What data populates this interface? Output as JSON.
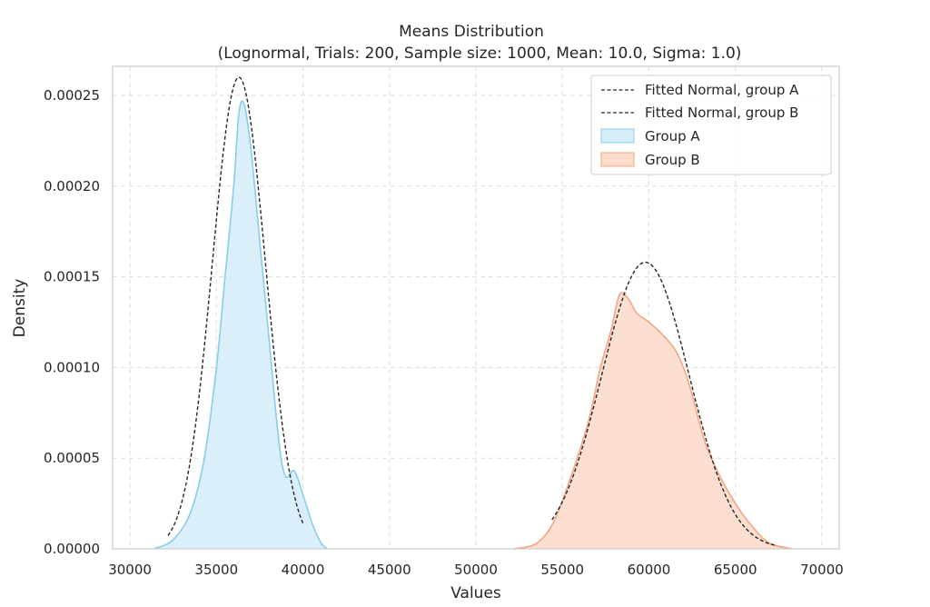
{
  "chart_data": {
    "type": "area",
    "title": "Means Distribution",
    "subtitle": "(Lognormal, Trials: 200, Sample size: 1000, Mean: 10.0, Sigma: 1.0)",
    "xlabel": "Values",
    "ylabel": "Density",
    "xlim": [
      29000,
      71000
    ],
    "ylim": [
      0,
      0.000266
    ],
    "xticks": [
      30000,
      35000,
      40000,
      45000,
      50000,
      55000,
      60000,
      65000,
      70000
    ],
    "yticks": [
      0.0,
      5e-05,
      0.0001,
      0.00015,
      0.0002,
      0.00025
    ],
    "xtick_labels": [
      "30000",
      "35000",
      "40000",
      "45000",
      "50000",
      "55000",
      "60000",
      "65000",
      "70000"
    ],
    "ytick_labels": [
      "0.00000",
      "0.00005",
      "0.00010",
      "0.00015",
      "0.00020",
      "0.00025"
    ],
    "grid": true,
    "legend_position": "top-right",
    "legend": [
      "Fitted Normal, group A",
      "Fitted Normal, group B",
      "Group A",
      "Group B"
    ],
    "series": [
      {
        "name": "Group A",
        "kind": "kde-area",
        "fill": "#d6edf8",
        "stroke": "#87ceeb",
        "x": [
          31400,
          32500,
          33500,
          34300,
          35000,
          35500,
          36000,
          36300,
          36600,
          37000,
          37500,
          38000,
          38600,
          39000,
          39500,
          40000,
          40500,
          41000,
          41400
        ],
        "y": [
          0.0,
          5e-06,
          2e-05,
          5e-05,
          0.0001,
          0.00015,
          0.0002,
          0.00024,
          0.000245,
          0.00022,
          0.00017,
          0.00012,
          6e-05,
          4e-05,
          4.3e-05,
          3e-05,
          1.5e-05,
          4e-06,
          0.0
        ]
      },
      {
        "name": "Group B",
        "kind": "kde-area",
        "fill": "#fcdccb",
        "stroke": "#f4a582",
        "x": [
          52200,
          53500,
          54500,
          55500,
          56500,
          57200,
          57800,
          58300,
          58800,
          59300,
          60000,
          60800,
          61500,
          62000,
          62500,
          63200,
          64000,
          65000,
          66000,
          67000,
          68300
        ],
        "y": [
          0.0,
          3e-06,
          1.5e-05,
          4e-05,
          7e-05,
          0.0001,
          0.00012,
          0.00014,
          0.000138,
          0.00013,
          0.000125,
          0.000118,
          0.00011,
          0.0001,
          8.5e-05,
          6e-05,
          4.2e-05,
          2.5e-05,
          1.2e-05,
          3e-06,
          0.0
        ]
      },
      {
        "name": "Fitted Normal, group A",
        "kind": "normal-dashed",
        "color": "#262626",
        "mean": 36300,
        "peak": 0.00026,
        "x_range": [
          32200,
          40000
        ]
      },
      {
        "name": "Fitted Normal, group B",
        "kind": "normal-dashed",
        "color": "#262626",
        "mean": 59800,
        "peak": 0.000158,
        "x_range": [
          54400,
          67400
        ]
      }
    ]
  }
}
